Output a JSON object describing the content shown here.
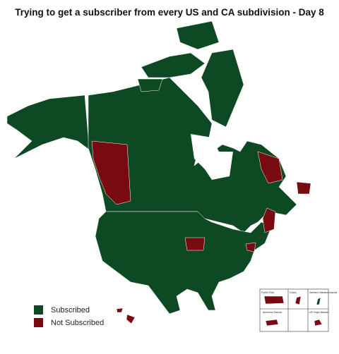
{
  "title": "Trying to get a subscriber from every US and CA subdivision - Day 8",
  "legend": [
    {
      "label": "Subscribed",
      "color": "#0d4a23"
    },
    {
      "label": "Not Subscribed",
      "color": "#7a0a12"
    }
  ],
  "insets": [
    "Puerto Rico",
    "Guam",
    "Northern Mariana Islands",
    "American Samoa",
    "US Virgin Islands"
  ]
}
